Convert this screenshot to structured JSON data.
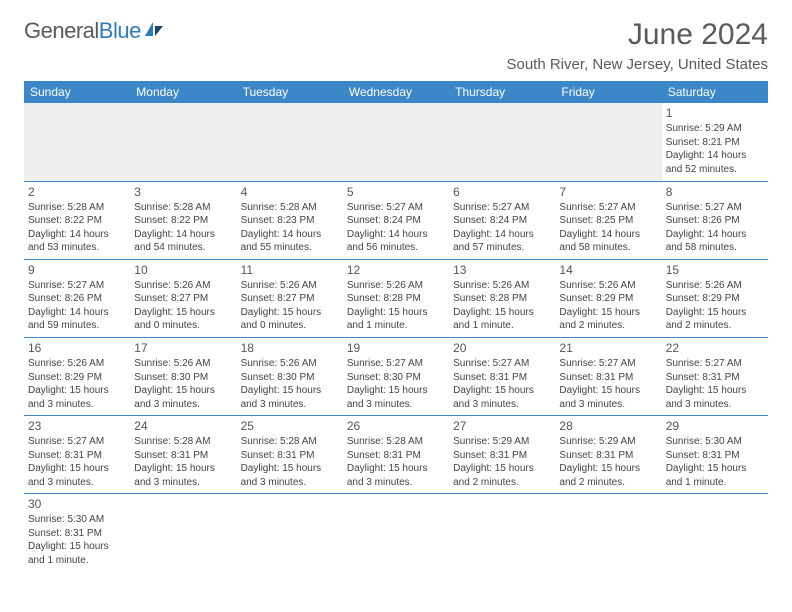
{
  "logo": {
    "name": "General",
    "name_accent": "Blue"
  },
  "title": "June 2024",
  "subtitle": "South River, New Jersey, United States",
  "colors": {
    "header_bg": "#3b87c8",
    "header_fg": "#ffffff",
    "text": "#444444",
    "title_color": "#5a5a5a",
    "blank_bg": "#efefef",
    "rule": "#3b87c8"
  },
  "weekdays": [
    "Sunday",
    "Monday",
    "Tuesday",
    "Wednesday",
    "Thursday",
    "Friday",
    "Saturday"
  ],
  "weeks": [
    [
      null,
      null,
      null,
      null,
      null,
      null,
      {
        "n": "1",
        "sr": "Sunrise: 5:29 AM",
        "ss": "Sunset: 8:21 PM",
        "dl": "Daylight: 14 hours and 52 minutes."
      }
    ],
    [
      {
        "n": "2",
        "sr": "Sunrise: 5:28 AM",
        "ss": "Sunset: 8:22 PM",
        "dl": "Daylight: 14 hours and 53 minutes."
      },
      {
        "n": "3",
        "sr": "Sunrise: 5:28 AM",
        "ss": "Sunset: 8:22 PM",
        "dl": "Daylight: 14 hours and 54 minutes."
      },
      {
        "n": "4",
        "sr": "Sunrise: 5:28 AM",
        "ss": "Sunset: 8:23 PM",
        "dl": "Daylight: 14 hours and 55 minutes."
      },
      {
        "n": "5",
        "sr": "Sunrise: 5:27 AM",
        "ss": "Sunset: 8:24 PM",
        "dl": "Daylight: 14 hours and 56 minutes."
      },
      {
        "n": "6",
        "sr": "Sunrise: 5:27 AM",
        "ss": "Sunset: 8:24 PM",
        "dl": "Daylight: 14 hours and 57 minutes."
      },
      {
        "n": "7",
        "sr": "Sunrise: 5:27 AM",
        "ss": "Sunset: 8:25 PM",
        "dl": "Daylight: 14 hours and 58 minutes."
      },
      {
        "n": "8",
        "sr": "Sunrise: 5:27 AM",
        "ss": "Sunset: 8:26 PM",
        "dl": "Daylight: 14 hours and 58 minutes."
      }
    ],
    [
      {
        "n": "9",
        "sr": "Sunrise: 5:27 AM",
        "ss": "Sunset: 8:26 PM",
        "dl": "Daylight: 14 hours and 59 minutes."
      },
      {
        "n": "10",
        "sr": "Sunrise: 5:26 AM",
        "ss": "Sunset: 8:27 PM",
        "dl": "Daylight: 15 hours and 0 minutes."
      },
      {
        "n": "11",
        "sr": "Sunrise: 5:26 AM",
        "ss": "Sunset: 8:27 PM",
        "dl": "Daylight: 15 hours and 0 minutes."
      },
      {
        "n": "12",
        "sr": "Sunrise: 5:26 AM",
        "ss": "Sunset: 8:28 PM",
        "dl": "Daylight: 15 hours and 1 minute."
      },
      {
        "n": "13",
        "sr": "Sunrise: 5:26 AM",
        "ss": "Sunset: 8:28 PM",
        "dl": "Daylight: 15 hours and 1 minute."
      },
      {
        "n": "14",
        "sr": "Sunrise: 5:26 AM",
        "ss": "Sunset: 8:29 PM",
        "dl": "Daylight: 15 hours and 2 minutes."
      },
      {
        "n": "15",
        "sr": "Sunrise: 5:26 AM",
        "ss": "Sunset: 8:29 PM",
        "dl": "Daylight: 15 hours and 2 minutes."
      }
    ],
    [
      {
        "n": "16",
        "sr": "Sunrise: 5:26 AM",
        "ss": "Sunset: 8:29 PM",
        "dl": "Daylight: 15 hours and 3 minutes."
      },
      {
        "n": "17",
        "sr": "Sunrise: 5:26 AM",
        "ss": "Sunset: 8:30 PM",
        "dl": "Daylight: 15 hours and 3 minutes."
      },
      {
        "n": "18",
        "sr": "Sunrise: 5:26 AM",
        "ss": "Sunset: 8:30 PM",
        "dl": "Daylight: 15 hours and 3 minutes."
      },
      {
        "n": "19",
        "sr": "Sunrise: 5:27 AM",
        "ss": "Sunset: 8:30 PM",
        "dl": "Daylight: 15 hours and 3 minutes."
      },
      {
        "n": "20",
        "sr": "Sunrise: 5:27 AM",
        "ss": "Sunset: 8:31 PM",
        "dl": "Daylight: 15 hours and 3 minutes."
      },
      {
        "n": "21",
        "sr": "Sunrise: 5:27 AM",
        "ss": "Sunset: 8:31 PM",
        "dl": "Daylight: 15 hours and 3 minutes."
      },
      {
        "n": "22",
        "sr": "Sunrise: 5:27 AM",
        "ss": "Sunset: 8:31 PM",
        "dl": "Daylight: 15 hours and 3 minutes."
      }
    ],
    [
      {
        "n": "23",
        "sr": "Sunrise: 5:27 AM",
        "ss": "Sunset: 8:31 PM",
        "dl": "Daylight: 15 hours and 3 minutes."
      },
      {
        "n": "24",
        "sr": "Sunrise: 5:28 AM",
        "ss": "Sunset: 8:31 PM",
        "dl": "Daylight: 15 hours and 3 minutes."
      },
      {
        "n": "25",
        "sr": "Sunrise: 5:28 AM",
        "ss": "Sunset: 8:31 PM",
        "dl": "Daylight: 15 hours and 3 minutes."
      },
      {
        "n": "26",
        "sr": "Sunrise: 5:28 AM",
        "ss": "Sunset: 8:31 PM",
        "dl": "Daylight: 15 hours and 3 minutes."
      },
      {
        "n": "27",
        "sr": "Sunrise: 5:29 AM",
        "ss": "Sunset: 8:31 PM",
        "dl": "Daylight: 15 hours and 2 minutes."
      },
      {
        "n": "28",
        "sr": "Sunrise: 5:29 AM",
        "ss": "Sunset: 8:31 PM",
        "dl": "Daylight: 15 hours and 2 minutes."
      },
      {
        "n": "29",
        "sr": "Sunrise: 5:30 AM",
        "ss": "Sunset: 8:31 PM",
        "dl": "Daylight: 15 hours and 1 minute."
      }
    ],
    [
      {
        "n": "30",
        "sr": "Sunrise: 5:30 AM",
        "ss": "Sunset: 8:31 PM",
        "dl": "Daylight: 15 hours and 1 minute."
      },
      null,
      null,
      null,
      null,
      null,
      null
    ]
  ]
}
